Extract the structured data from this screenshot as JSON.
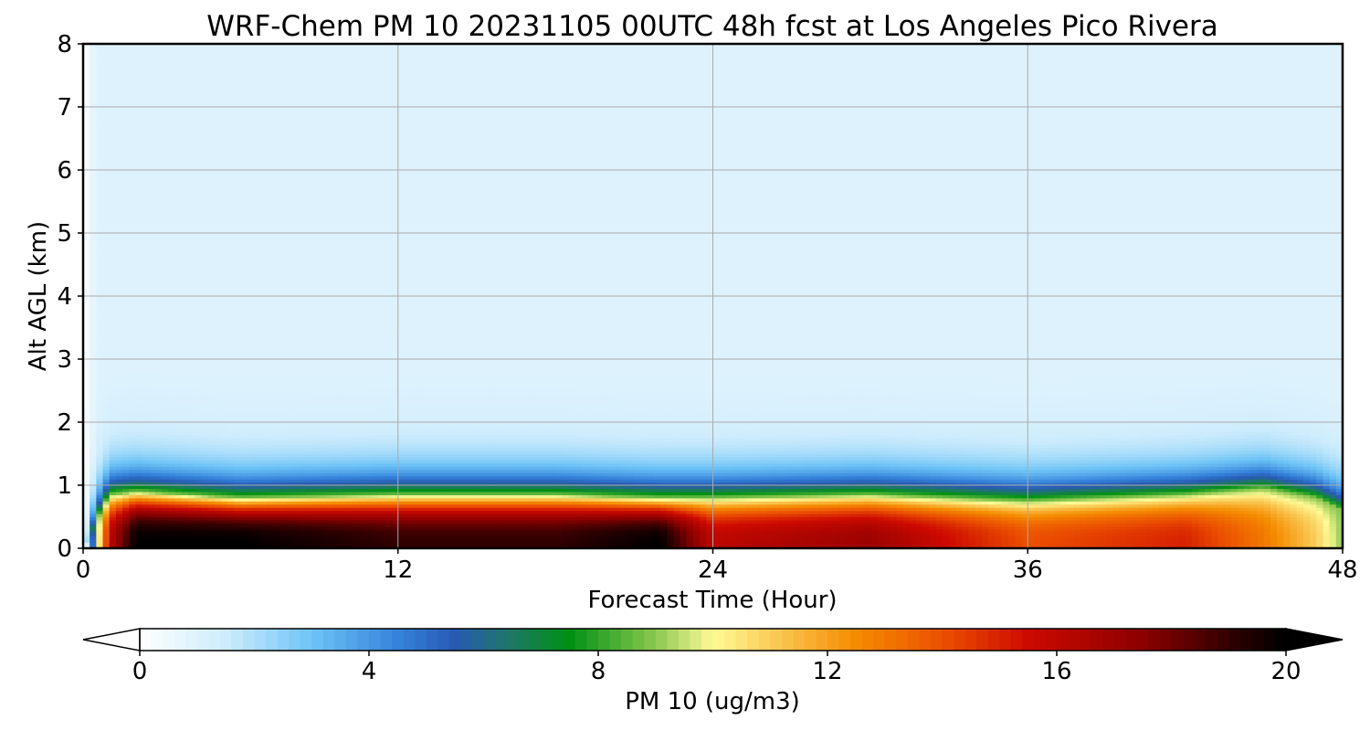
{
  "chart_data": {
    "type": "heatmap",
    "title": "WRF-Chem PM 10  20231105 00UTC 48h fcst at Los Angeles Pico Rivera",
    "xlabel": "Forecast Time (Hour)",
    "ylabel": "Alt AGL (km)",
    "xlim": [
      0,
      48
    ],
    "ylim": [
      0,
      8
    ],
    "x_ticks": [
      "0",
      "12",
      "24",
      "36",
      "48"
    ],
    "y_ticks": [
      "0",
      "1",
      "2",
      "3",
      "4",
      "5",
      "6",
      "7",
      "8"
    ],
    "grid": true,
    "colorbar": {
      "label": "PM 10  (ug/m3)",
      "ticks": [
        "0",
        "4",
        "8",
        "12",
        "16",
        "20"
      ],
      "range": [
        0,
        20
      ],
      "extend": "both",
      "orientation": "horizontal",
      "placement": "bottom"
    },
    "field": {
      "description_levels_km": [
        0.0,
        0.15,
        0.3,
        0.5,
        0.7,
        0.85,
        1.0,
        1.3,
        1.6,
        2.0,
        3.0,
        5.0,
        8.0
      ],
      "hours": [
        0,
        1,
        2,
        6,
        12,
        18,
        22,
        24,
        30,
        36,
        42,
        45,
        47,
        48
      ],
      "pm10_profile_at_surface": [
        1,
        16,
        20,
        20,
        19,
        19,
        20,
        16,
        17,
        14,
        15,
        13,
        11,
        9
      ],
      "mixed_layer_top_km": [
        0.0,
        0.85,
        0.9,
        0.8,
        0.85,
        0.85,
        0.8,
        0.8,
        0.85,
        0.75,
        0.85,
        0.95,
        0.8,
        0.6
      ],
      "free_troposphere_value": 1.0
    }
  }
}
